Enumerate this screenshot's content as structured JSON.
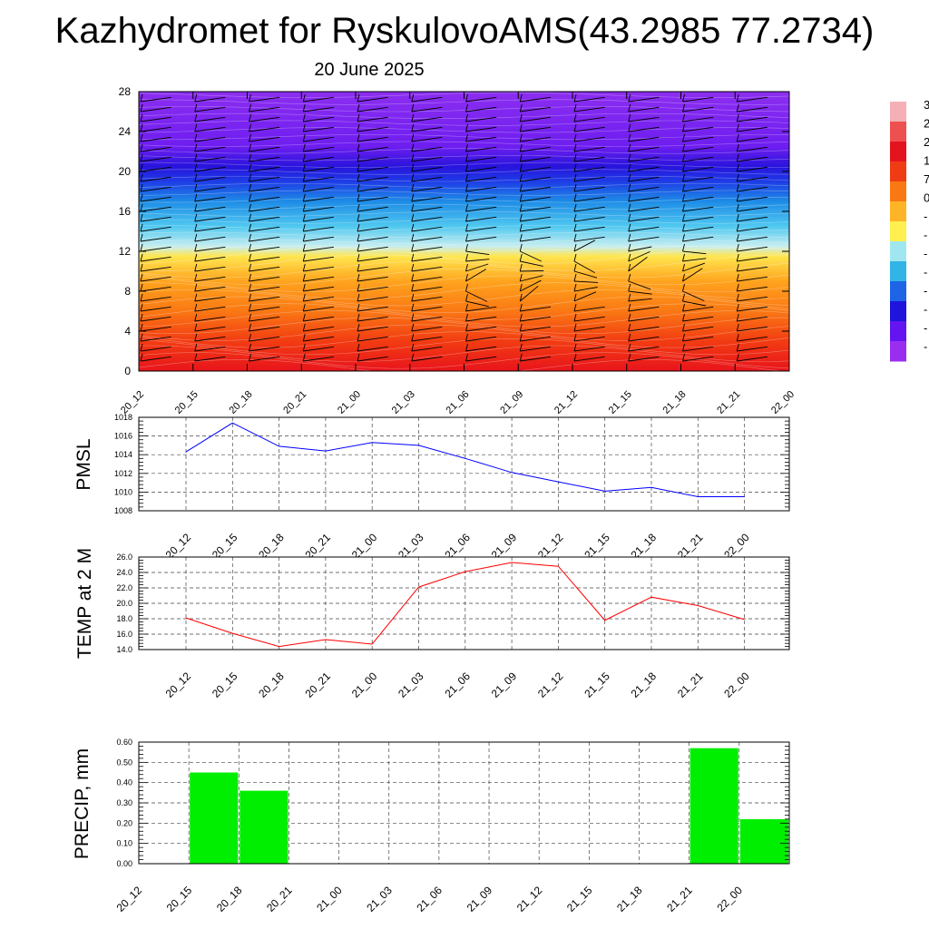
{
  "title": "Kazhydromet for RyskulovoAMS(43.2985 77.2734)",
  "subtitle": "20 June 2025",
  "colorbar": {
    "visible_labels": [
      "3",
      "2",
      "2",
      "1",
      "7",
      "0",
      "-",
      "-",
      "-",
      "-",
      "-",
      "-",
      "-",
      "-"
    ],
    "colors": [
      "#f4b0b4",
      "#ee5050",
      "#e4141e",
      "#f03c14",
      "#fa7814",
      "#ffb428",
      "#fff050",
      "#a0e6f0",
      "#32b4e6",
      "#1e64e6",
      "#1e14dc",
      "#6414f0",
      "#9a2ef0"
    ]
  },
  "chart_data": [
    {
      "id": "cross-section",
      "type": "heatmap",
      "title": "",
      "xlabel": "",
      "ylabel": "",
      "x": [
        "20_12",
        "20_15",
        "20_18",
        "20_21",
        "21_00",
        "21_03",
        "21_06",
        "21_09",
        "21_12",
        "21_15",
        "21_18",
        "21_21",
        "22_00"
      ],
      "y_ticks": [
        0,
        4,
        8,
        12,
        16,
        20,
        24,
        28
      ],
      "ylim": [
        0,
        28
      ],
      "color_bands_by_level": [
        {
          "y": 0,
          "color": "#e8141c"
        },
        {
          "y": 3,
          "color": "#f23c12"
        },
        {
          "y": 6,
          "color": "#fa7814"
        },
        {
          "y": 9,
          "color": "#ffa41e"
        },
        {
          "y": 11.5,
          "color": "#ffe650"
        },
        {
          "y": 12.5,
          "color": "#c8eef0"
        },
        {
          "y": 14.5,
          "color": "#50c8f0"
        },
        {
          "y": 17,
          "color": "#1e8ce6"
        },
        {
          "y": 19,
          "color": "#1e3ce6"
        },
        {
          "y": 20.5,
          "color": "#2814dc"
        },
        {
          "y": 22.5,
          "color": "#6e1ef0"
        },
        {
          "y": 28,
          "color": "#8c2ef0"
        }
      ],
      "wind_barbs": true
    },
    {
      "id": "pmsl",
      "type": "line",
      "title": "",
      "xlabel": "",
      "ylabel": "PMSL",
      "x": [
        "20_12",
        "20_15",
        "20_18",
        "20_21",
        "21_00",
        "21_03",
        "21_06",
        "21_09",
        "21_12",
        "21_15",
        "21_18",
        "21_21",
        "22_00"
      ],
      "series": [
        {
          "color": "#0000ff",
          "values": [
            1014.3,
            1017.4,
            1014.9,
            1014.4,
            1015.3,
            1015.0,
            1013.6,
            1012.1,
            1011.1,
            1010.1,
            1010.5,
            1009.5,
            1009.5
          ]
        }
      ],
      "ylim": [
        1008,
        1018
      ],
      "y_ticks": [
        "1008",
        "1010",
        "1012",
        "1014",
        "1016",
        "1018"
      ],
      "grid": true
    },
    {
      "id": "temp2m",
      "type": "line",
      "title": "",
      "xlabel": "",
      "ylabel": "TEMP at 2 M",
      "x": [
        "20_12",
        "20_15",
        "20_18",
        "20_21",
        "21_00",
        "21_03",
        "21_06",
        "21_09",
        "21_12",
        "21_15",
        "21_18",
        "21_21",
        "22_00"
      ],
      "series": [
        {
          "color": "#ff0000",
          "values": [
            18.1,
            16.1,
            14.4,
            15.3,
            14.7,
            22.1,
            24.1,
            25.3,
            24.8,
            17.8,
            20.8,
            19.7,
            17.9
          ]
        }
      ],
      "ylim": [
        14,
        26
      ],
      "y_ticks": [
        "14.0",
        "16.0",
        "18.0",
        "20.0",
        "22.0",
        "24.0",
        "26.0"
      ],
      "grid": true
    },
    {
      "id": "precip",
      "type": "bar",
      "title": "",
      "xlabel": "",
      "ylabel": "PRECIP, mm",
      "categories": [
        "20_12",
        "20_15",
        "20_18",
        "20_21",
        "21_00",
        "21_03",
        "21_06",
        "21_09",
        "21_12",
        "21_15",
        "21_18",
        "21_21",
        "22_00"
      ],
      "values": [
        0,
        0.45,
        0.36,
        0,
        0,
        0,
        0,
        0,
        0,
        0,
        0,
        0.57,
        0.22
      ],
      "color": "#00ee00",
      "ylim": [
        0,
        0.6
      ],
      "y_ticks": [
        "0.00",
        "0.10",
        "0.20",
        "0.30",
        "0.40",
        "0.50",
        "0.60"
      ],
      "grid": true
    }
  ]
}
